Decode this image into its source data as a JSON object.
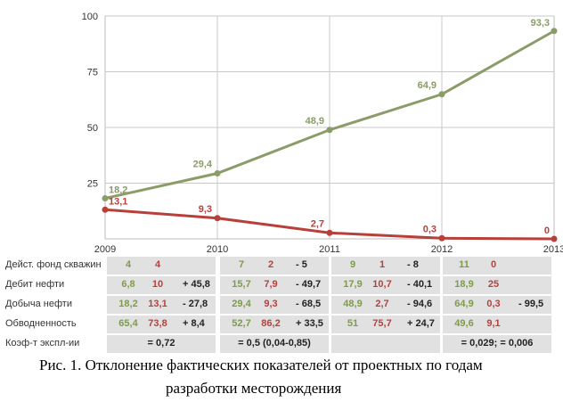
{
  "chart_data": {
    "type": "line",
    "x": [
      "2009",
      "2010",
      "2011",
      "2012",
      "2013"
    ],
    "ylim": [
      0,
      100
    ],
    "yticks": [
      "25",
      "50",
      "75",
      "100"
    ],
    "series": [
      {
        "values": [
          18.2,
          29.4,
          48.9,
          64.9,
          93.3
        ],
        "labels": [
          "18,2",
          "29,4",
          "48,9",
          "64,9",
          "93,3"
        ],
        "color": "#8a9c68"
      },
      {
        "values": [
          13.1,
          9.3,
          2.7,
          0.3,
          0
        ],
        "labels": [
          "13,1",
          "9,3",
          "2,7",
          "0,3",
          "0"
        ],
        "color": "#b8403a"
      }
    ],
    "grid": true
  },
  "table": {
    "rows": [
      {
        "label": "Дейст. фонд скважин",
        "cells": [
          [
            "4",
            "4",
            ""
          ],
          [
            "7",
            "2",
            "- 5"
          ],
          [
            "9",
            "1",
            "- 8"
          ],
          [
            "11",
            "0",
            ""
          ]
        ]
      },
      {
        "label": "Дебит нефти",
        "cells": [
          [
            "6,8",
            "10",
            "+ 45,8"
          ],
          [
            "15,7",
            "7,9",
            "- 49,7"
          ],
          [
            "17,9",
            "10,7",
            "- 40,1"
          ],
          [
            "18,9",
            "25",
            ""
          ]
        ]
      },
      {
        "label": "Добыча нефти",
        "cells": [
          [
            "18,2",
            "13,1",
            "- 27,8"
          ],
          [
            "29,4",
            "9,3",
            "- 68,5"
          ],
          [
            "48,9",
            "2,7",
            "- 94,6"
          ],
          [
            "64,9",
            "0,3",
            "- 99,5"
          ]
        ]
      },
      {
        "label": "Обводненность",
        "cells": [
          [
            "65,4",
            "73,8",
            "+ 8,4"
          ],
          [
            "52,7",
            "86,2",
            "+ 33,5"
          ],
          [
            "51",
            "75,7",
            "+ 24,7"
          ],
          [
            "49,6",
            "9,1",
            ""
          ]
        ]
      },
      {
        "label": "Коэф-т экспл-ии",
        "merged": [
          "= 0,72",
          "= 0,5 (0,04-0,85)",
          "",
          "= 0,029; = 0,006"
        ]
      }
    ]
  },
  "caption": {
    "line1": "Рис. 1. Отклонение фактических показателей от проектных по годам",
    "line2": "разработки месторождения"
  }
}
